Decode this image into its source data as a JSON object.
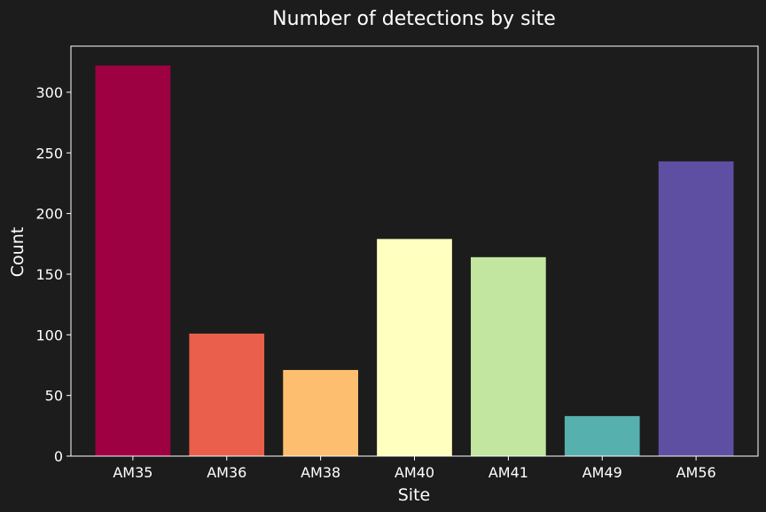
{
  "chart_data": {
    "type": "bar",
    "title": "Number of detections by site",
    "xlabel": "Site",
    "ylabel": "Count",
    "categories": [
      "AM35",
      "AM36",
      "AM38",
      "AM40",
      "AM41",
      "AM49",
      "AM56"
    ],
    "values": [
      322,
      101,
      71,
      179,
      164,
      33,
      243
    ],
    "colors": [
      "#9e0142",
      "#ea5f4b",
      "#fdbf6f",
      "#ffffbf",
      "#c2e6a0",
      "#56b0ae",
      "#5e4fa2"
    ],
    "ylim": [
      0,
      338
    ],
    "yticks": [
      0,
      50,
      100,
      150,
      200,
      250,
      300
    ],
    "grid": false,
    "legend": "none"
  },
  "theme": {
    "background": "#1c1c1c",
    "frame": "#ffffff",
    "text": "#ffffff"
  }
}
